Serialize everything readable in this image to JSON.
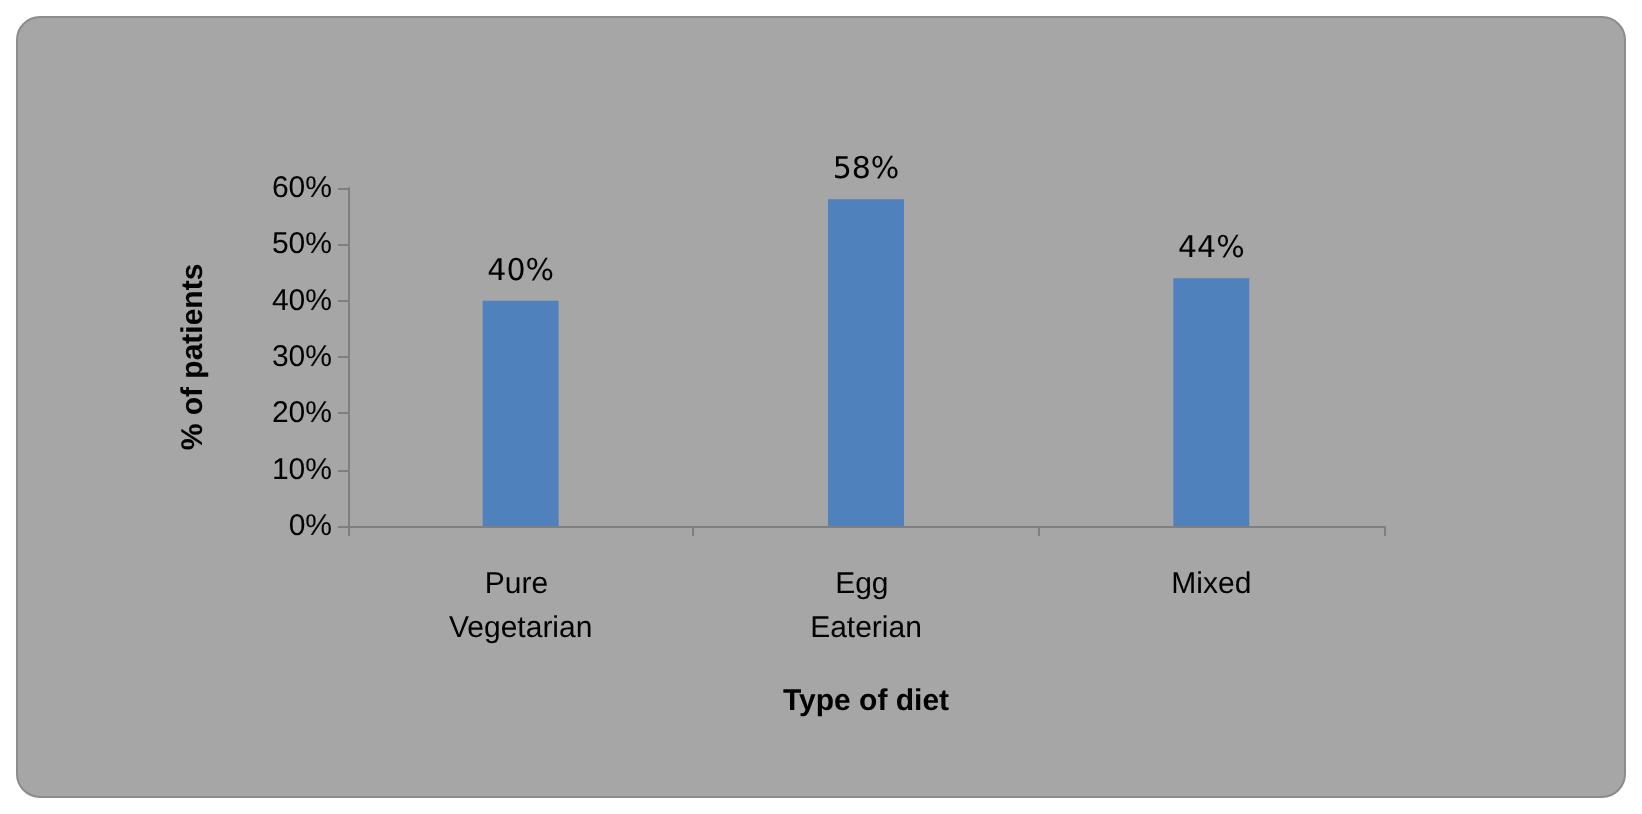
{
  "chart_data": {
    "type": "bar",
    "xlabel": "Type of diet",
    "ylabel": "% of patients",
    "categories": [
      "Pure Vegetarian",
      "Egg Eaterian",
      "Mixed"
    ],
    "values": [
      40,
      58,
      44
    ],
    "color": "#4f81bd",
    "value_labels": [
      "40%",
      "58%",
      "44%"
    ],
    "ylim": [
      0,
      60
    ],
    "yticks": [
      {
        "value": 0,
        "label": "0%"
      },
      {
        "value": 10,
        "label": "10%"
      },
      {
        "value": 20,
        "label": "20%"
      },
      {
        "value": 30,
        "label": "30%"
      },
      {
        "value": 40,
        "label": "40%"
      },
      {
        "value": 50,
        "label": "50%"
      },
      {
        "value": 60,
        "label": "60%"
      }
    ],
    "grid": false
  }
}
